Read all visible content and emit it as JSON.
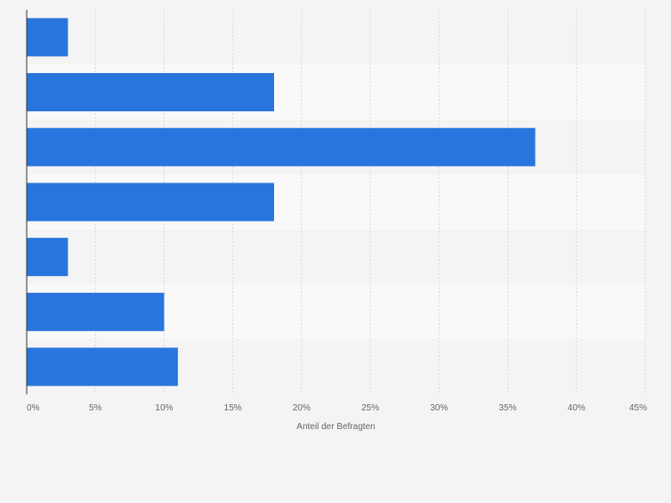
{
  "chart_data": {
    "type": "bar",
    "orientation": "horizontal",
    "categories": [
      "",
      "",
      "",
      "",
      "",
      "",
      ""
    ],
    "values": [
      3,
      18,
      37,
      18,
      3,
      10,
      11
    ],
    "xlabel": "Anteil der Befragten",
    "ylabel": "",
    "xlim": [
      0,
      45
    ],
    "xticks": [
      0,
      5,
      10,
      15,
      20,
      25,
      30,
      35,
      40,
      45
    ],
    "xtick_labels": [
      "0%",
      "5%",
      "10%",
      "15%",
      "20%",
      "25%",
      "30%",
      "35%",
      "40%",
      "45%"
    ],
    "grid": true,
    "legend": "none",
    "colors": {
      "bar": "#2876dd",
      "background": "#f4f4f4",
      "band_alt": "#f9f9f9",
      "grid": "#d9d9d9",
      "axis": "#333333",
      "tick_text": "#666666"
    }
  }
}
